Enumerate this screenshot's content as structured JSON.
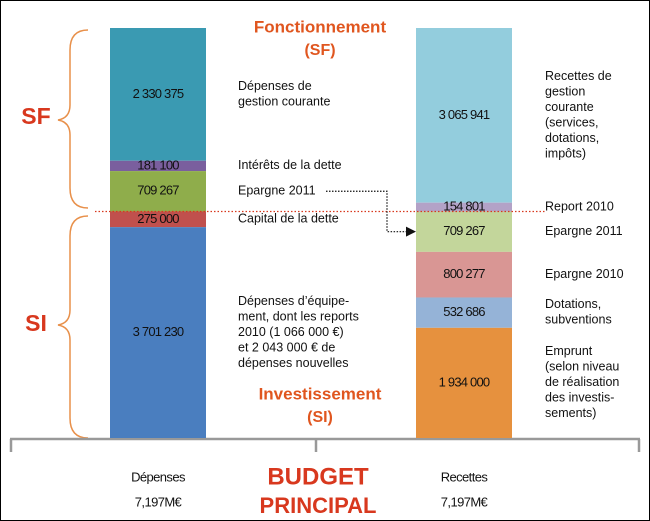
{
  "chart_data": {
    "type": "stacked-bar",
    "top_title": "Fonctionnement",
    "top_subtitle": "(SF)",
    "bottom_title": "Investissement",
    "bottom_subtitle": "(SI)",
    "left_top_label": "SF",
    "left_bottom_label": "SI",
    "footer": [
      "BUDGET",
      "PRINCIPAL"
    ],
    "stacks": [
      {
        "name": "Dépenses",
        "total_label": "7,197M€",
        "segments": [
          {
            "value": 2330375,
            "value_label": "2 330 375",
            "color": "#3a9ab2",
            "description": [
              "Dépenses de",
              "gestion courante"
            ]
          },
          {
            "value": 181100,
            "value_label": "181 100",
            "color": "#7a5f9e",
            "description": [
              "Intérêts de la dette"
            ]
          },
          {
            "value": 709267,
            "value_label": "709 267",
            "color": "#8fad4b",
            "description": [
              "Epargne 2011"
            ]
          },
          {
            "value": 275000,
            "value_label": "275 000",
            "color": "#c0504d",
            "description": [
              "Capital de  la dette"
            ]
          },
          {
            "value": 3701230,
            "value_label": "3 701 230",
            "color": "#4a7ebf",
            "description": [
              "Dépenses d’équipe-",
              "ment, dont les reports",
              "2010 (1 066 000 €)",
              "et 2 043 000 € de",
              "dépenses nouvelles"
            ]
          }
        ]
      },
      {
        "name": "Recettes",
        "total_label": "7,197M€",
        "segments": [
          {
            "value": 3065941,
            "value_label": "3 065 941",
            "color": "#93cddd",
            "description": [
              "Recettes de",
              "gestion",
              "courante",
              "(services,",
              "dotations,",
              "impôts)"
            ]
          },
          {
            "value": 154801,
            "value_label": "154 801",
            "color": "#b3a2c7",
            "description": [
              "Report 2010"
            ]
          },
          {
            "value": 709267,
            "value_label": "709 267",
            "color": "#c3d69b",
            "description": [
              "Epargne 2011"
            ]
          },
          {
            "value": 800277,
            "value_label": "800 277",
            "color": "#d99694",
            "description": [
              "Epargne 2010"
            ]
          },
          {
            "value": 532686,
            "value_label": "532 686",
            "color": "#95b3d7",
            "description": [
              "Dotations,",
              "subventions"
            ]
          },
          {
            "value": 1934000,
            "value_label": "1 934 000",
            "color": "#e6913e",
            "description": [
              "Emprunt",
              "(selon niveau",
              "de réalisation",
              "des investis-",
              "sements)"
            ]
          }
        ]
      }
    ]
  }
}
